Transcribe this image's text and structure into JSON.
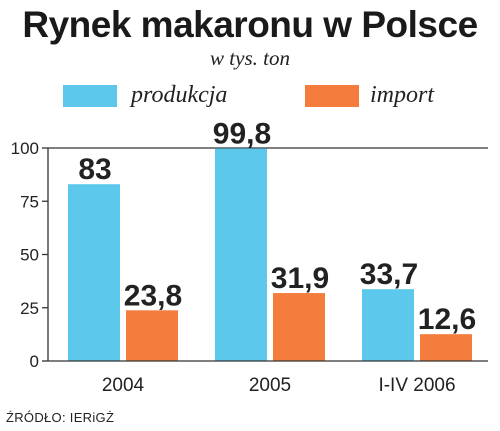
{
  "chart_data": {
    "type": "bar",
    "title": "Rynek makaronu w Polsce",
    "subtitle": "w tys. ton",
    "categories": [
      "2004",
      "2005",
      "I-IV 2006"
    ],
    "series": [
      {
        "name": "produkcja",
        "color": "#5bc8ec",
        "values": [
          83,
          99.8,
          33.7
        ],
        "labels": [
          "83",
          "99,8",
          "33,7"
        ]
      },
      {
        "name": "import",
        "color": "#f47c3c",
        "values": [
          23.8,
          31.9,
          12.6
        ],
        "labels": [
          "23,8",
          "31,9",
          "12,6"
        ]
      }
    ],
    "ylim": [
      0,
      100
    ],
    "yticks": [
      "100",
      "75",
      "50",
      "25",
      "0"
    ],
    "legend_position": "top",
    "grid": false
  },
  "source": "ŹRÓDŁO: IERiGŻ"
}
